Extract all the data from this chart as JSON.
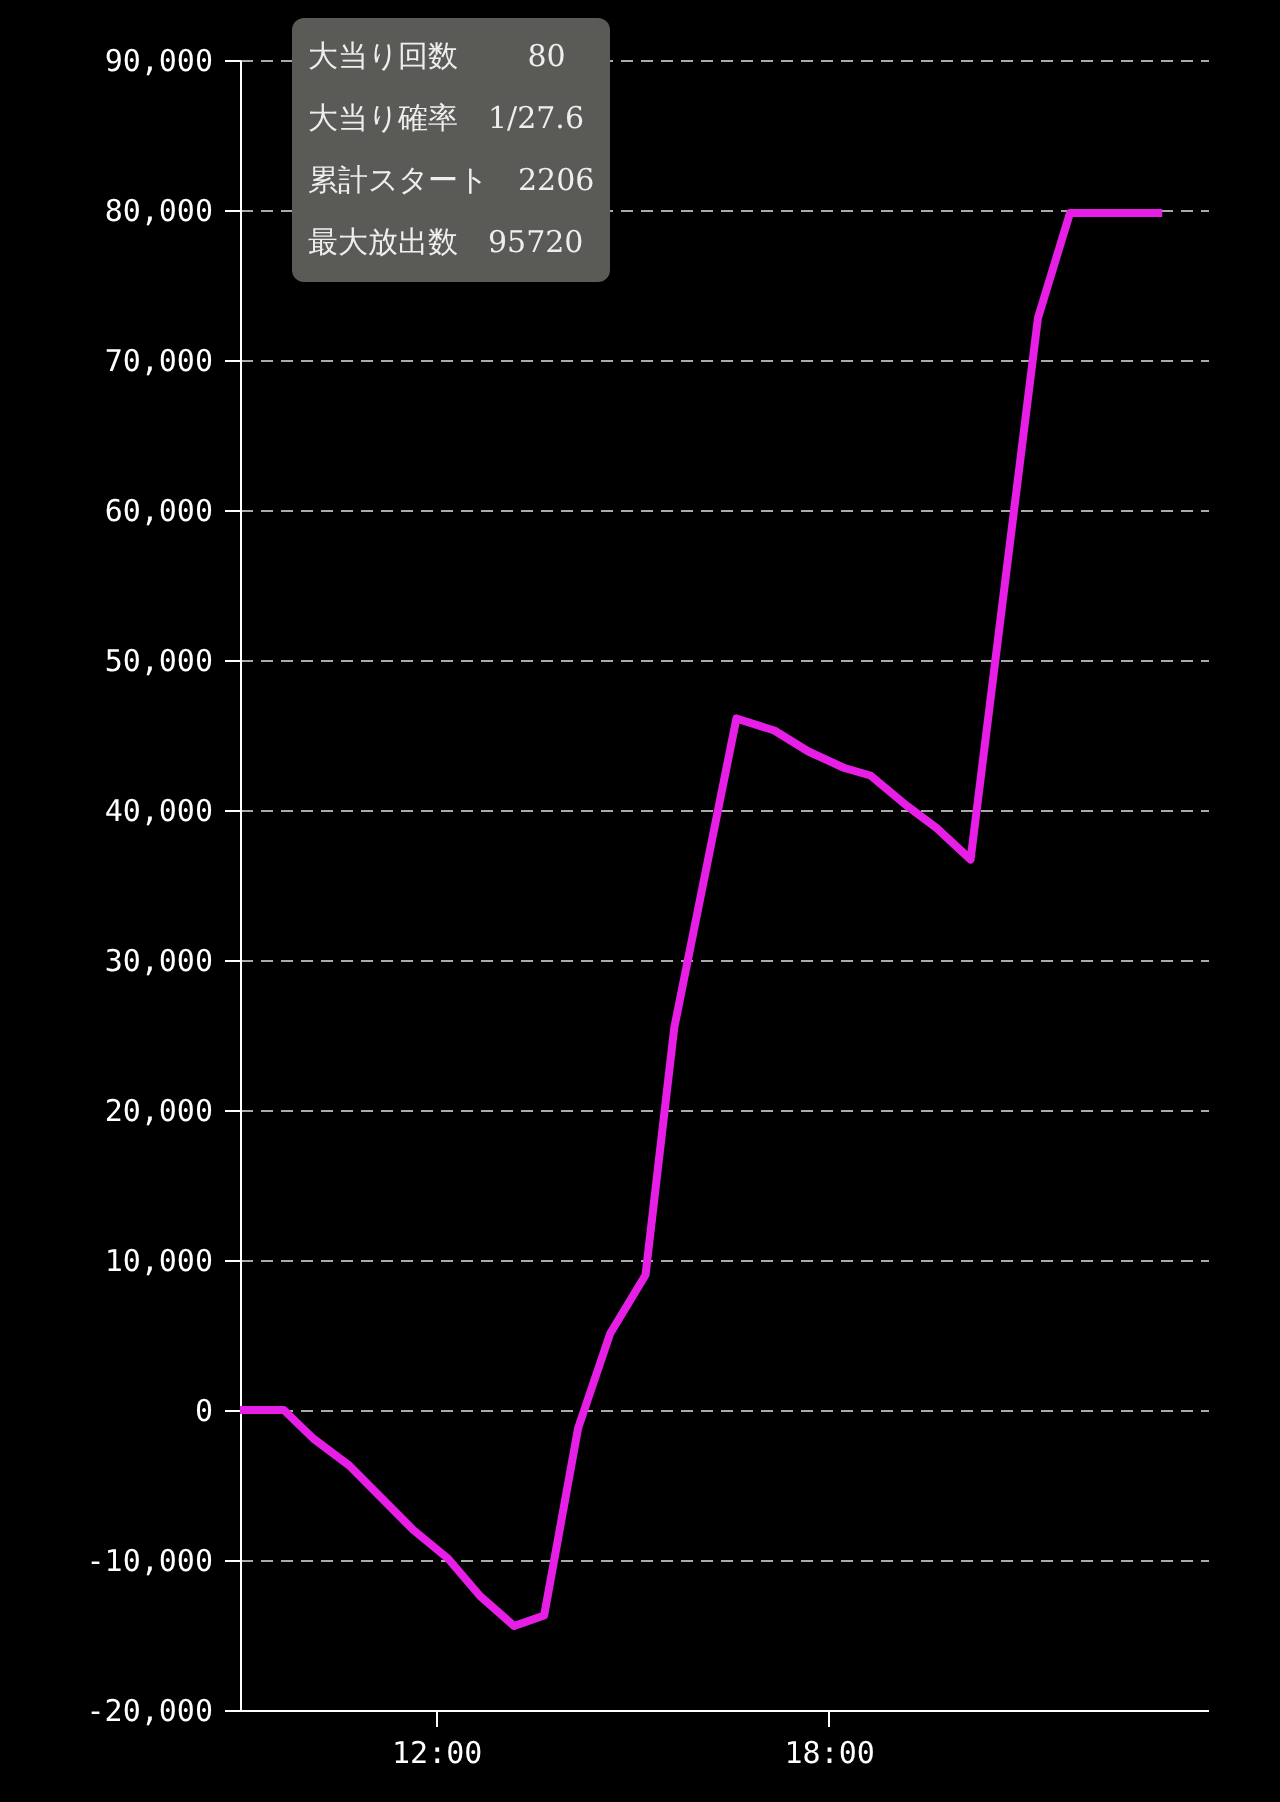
{
  "chart_data": {
    "type": "line",
    "x": [
      9.0,
      9.67,
      10.12,
      10.67,
      11.65,
      12.18,
      12.67,
      13.19,
      13.65,
      14.17,
      14.66,
      15.2,
      15.64,
      16.59,
      17.17,
      17.69,
      18.24,
      18.64,
      19.19,
      19.65,
      20.17,
      21.2,
      21.69,
      23.1
    ],
    "series": [
      {
        "color": "#e61ee6",
        "values": [
          0,
          0,
          -1900,
          -3700,
          -8000,
          -9900,
          -12400,
          -14400,
          -13700,
          -1200,
          5100,
          9000,
          25500,
          46100,
          45300,
          43900,
          42800,
          42300,
          40300,
          38800,
          36700,
          72800,
          79800,
          79800
        ]
      }
    ],
    "xlim": [
      9,
      23.8
    ],
    "xticks": [
      {
        "value": 12,
        "label": "12:00"
      },
      {
        "value": 18,
        "label": "18:00"
      }
    ],
    "ylim": [
      -20000,
      90000
    ],
    "yticks": [
      {
        "value": -20000,
        "label": "-20,000"
      },
      {
        "value": -10000,
        "label": "-10,000"
      },
      0,
      {
        "value": 10000,
        "label": "10,000"
      },
      {
        "value": 20000,
        "label": "20,000"
      },
      {
        "value": 30000,
        "label": "30,000"
      },
      {
        "value": 40000,
        "label": "40,000"
      },
      {
        "value": 50000,
        "label": "50,000"
      },
      {
        "value": 60000,
        "label": "60,000"
      },
      {
        "value": 70000,
        "label": "70,000"
      },
      {
        "value": 80000,
        "label": "80,000"
      },
      {
        "value": 90000,
        "label": "90,000"
      }
    ],
    "grid": "y",
    "marker": "none",
    "line_style": "solid",
    "annotations": [
      "大当り回数　　 80",
      "大当り確率　1/27.6",
      "累計スタート　2206",
      "最大放出数　95720"
    ]
  }
}
